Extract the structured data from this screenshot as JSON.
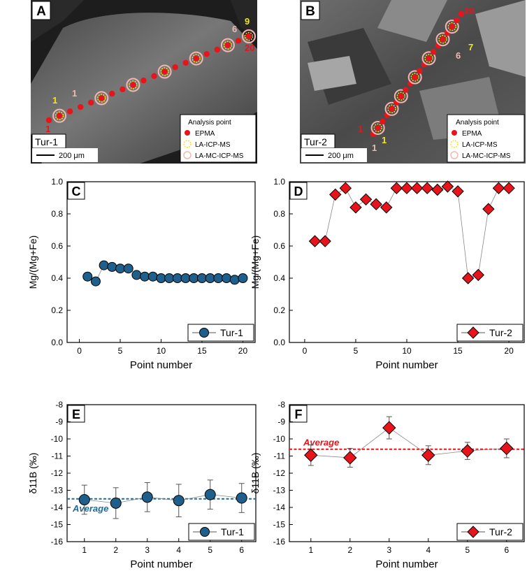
{
  "images": [
    {
      "panel": "A",
      "sample": "Tur-1",
      "scale_label": "200 μm",
      "point_labels": [
        "1",
        "1",
        "9",
        "6",
        "20"
      ],
      "legend": {
        "title": "Analysis point",
        "items": [
          "EPMA",
          "LA-ICP-MS",
          "LA-MC-ICP-MS"
        ]
      }
    },
    {
      "panel": "B",
      "sample": "Tur-2",
      "scale_label": "200 μm",
      "point_labels": [
        "20",
        "7",
        "6",
        "1",
        "1",
        "1"
      ],
      "legend": {
        "title": "Analysis point",
        "items": [
          "EPMA",
          "LA-ICP-MS",
          "LA-MC-ICP-MS"
        ]
      }
    }
  ],
  "colors": {
    "tur1": "#1f5f8b",
    "tur2": "#e8141b",
    "avg1": "#1a6d9e",
    "avg2": "#e8141b",
    "epma": "#e8141b",
    "laicp": "#f5e61a",
    "lamc": "#f2b8b0"
  },
  "chart_data": [
    {
      "panel": "C",
      "type": "scatter",
      "series": [
        {
          "name": "Tur-1",
          "marker": "circle",
          "x": [
            1,
            2,
            3,
            4,
            5,
            6,
            7,
            8,
            9,
            10,
            11,
            12,
            13,
            14,
            15,
            16,
            17,
            18,
            19,
            20
          ],
          "values": [
            0.41,
            0.38,
            0.48,
            0.47,
            0.46,
            0.46,
            0.42,
            0.41,
            0.41,
            0.4,
            0.4,
            0.4,
            0.4,
            0.4,
            0.4,
            0.4,
            0.4,
            0.4,
            0.39,
            0.4
          ]
        }
      ],
      "xlabel": "Point number",
      "ylabel": "Mg/(Mg+Fe)",
      "xlim": [
        -1.5,
        21.5
      ],
      "ylim": [
        0.0,
        1.0
      ],
      "xticks": [
        "0",
        "5",
        "10",
        "15",
        "20"
      ],
      "yticks": [
        "0.0",
        "0.2",
        "0.4",
        "0.6",
        "0.8",
        "1.0"
      ],
      "legend_position": "bottom-right"
    },
    {
      "panel": "D",
      "type": "scatter",
      "series": [
        {
          "name": "Tur-2",
          "marker": "diamond",
          "x": [
            1,
            2,
            3,
            4,
            5,
            6,
            7,
            8,
            9,
            10,
            11,
            12,
            13,
            14,
            15,
            16,
            17,
            18,
            19,
            20
          ],
          "values": [
            0.63,
            0.63,
            0.92,
            0.96,
            0.84,
            0.89,
            0.86,
            0.84,
            0.96,
            0.96,
            0.96,
            0.96,
            0.95,
            0.97,
            0.94,
            0.4,
            0.42,
            0.83,
            0.96,
            0.96
          ]
        }
      ],
      "xlabel": "Point number",
      "ylabel": "Mg/(Mg+Fe)",
      "xlim": [
        -1.5,
        21.5
      ],
      "ylim": [
        0.0,
        1.0
      ],
      "xticks": [
        "0",
        "5",
        "10",
        "15",
        "20"
      ],
      "yticks": [
        "0.0",
        "0.2",
        "0.4",
        "0.6",
        "0.8",
        "1.0"
      ],
      "legend_position": "bottom-right"
    },
    {
      "panel": "E",
      "type": "scatter",
      "series": [
        {
          "name": "Tur-1",
          "marker": "circle",
          "x": [
            1,
            2,
            3,
            4,
            5,
            6
          ],
          "values": [
            -13.55,
            -13.75,
            -13.4,
            -13.6,
            -13.25,
            -13.45
          ],
          "errors": [
            0.85,
            0.9,
            0.85,
            0.95,
            0.85,
            0.85
          ]
        }
      ],
      "average": {
        "label": "Average",
        "value": -13.5
      },
      "xlabel": "Point number",
      "ylabel": "δ11B (‰)",
      "xlim": [
        0.45,
        6.45
      ],
      "ylim": [
        -16,
        -8
      ],
      "xticks": [
        "1",
        "2",
        "3",
        "4",
        "5",
        "6"
      ],
      "yticks": [
        "-16",
        "-15",
        "-14",
        "-13",
        "-12",
        "-11",
        "-10",
        "-9",
        "-8"
      ],
      "legend_position": "bottom-right"
    },
    {
      "panel": "F",
      "type": "scatter",
      "series": [
        {
          "name": "Tur-2",
          "marker": "diamond",
          "x": [
            1,
            2,
            3,
            4,
            5,
            6
          ],
          "values": [
            -10.95,
            -11.1,
            -9.35,
            -10.95,
            -10.7,
            -10.55
          ],
          "errors": [
            0.6,
            0.55,
            0.65,
            0.55,
            0.5,
            0.55
          ]
        }
      ],
      "average": {
        "label": "Average",
        "value": -10.6
      },
      "xlabel": "Point number",
      "ylabel": "δ11B (‰)",
      "xlim": [
        0.45,
        6.45
      ],
      "ylim": [
        -16,
        -8
      ],
      "xticks": [
        "1",
        "2",
        "3",
        "4",
        "5",
        "6"
      ],
      "yticks": [
        "-16",
        "-15",
        "-14",
        "-13",
        "-12",
        "-11",
        "-10",
        "-9",
        "-8"
      ],
      "legend_position": "bottom-right"
    }
  ]
}
